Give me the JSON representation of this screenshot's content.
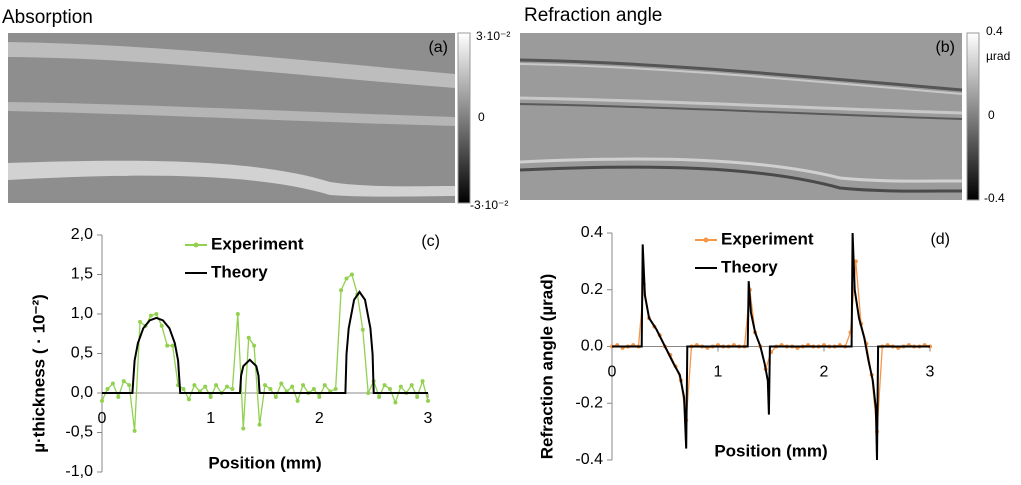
{
  "images": [
    {
      "title": "Absorption",
      "panel_label": "(a)",
      "colorbar_labels": [
        "3·10⁻²",
        "0",
        "-3·10⁻²"
      ]
    },
    {
      "title": "Refraction angle",
      "panel_label": "(b)",
      "colorbar_labels": [
        "0.4",
        "µrad",
        "0",
        "-0.4"
      ]
    }
  ],
  "chart_data": [
    {
      "type": "line",
      "panel_label": "(c)",
      "x_label": "Position (mm)",
      "y_label": "µ·thickness ( · 10⁻²)",
      "xlim": [
        0,
        3
      ],
      "xticks": [
        0,
        1,
        2,
        3
      ],
      "ylim": [
        -1,
        2
      ],
      "yticks": [
        {
          "value": 2,
          "label": "2,0"
        },
        {
          "value": 1.5,
          "label": "1,5"
        },
        {
          "value": 1,
          "label": "1,0"
        },
        {
          "value": 0.5,
          "label": "0,5"
        },
        {
          "value": 0,
          "label": "0,0"
        },
        {
          "value": -0.5,
          "label": "-0,5"
        },
        {
          "value": -1,
          "label": "-1,0"
        }
      ],
      "series": [
        {
          "name": "Experiment",
          "color": "#92d050",
          "marker": true,
          "x": [
            0,
            0.05,
            0.1,
            0.15,
            0.2,
            0.25,
            0.3,
            0.35,
            0.4,
            0.45,
            0.5,
            0.55,
            0.6,
            0.65,
            0.7,
            0.75,
            0.8,
            0.85,
            0.9,
            0.95,
            1,
            1.05,
            1.1,
            1.15,
            1.2,
            1.25,
            1.3,
            1.35,
            1.4,
            1.45,
            1.5,
            1.55,
            1.6,
            1.65,
            1.7,
            1.75,
            1.8,
            1.85,
            1.9,
            1.95,
            2,
            2.05,
            2.1,
            2.15,
            2.2,
            2.25,
            2.3,
            2.35,
            2.4,
            2.45,
            2.5,
            2.55,
            2.6,
            2.65,
            2.7,
            2.75,
            2.8,
            2.85,
            2.9,
            2.95,
            3
          ],
          "values": [
            -0.1,
            0.05,
            0.12,
            -0.05,
            0.15,
            0.1,
            -0.48,
            0.9,
            0.85,
            0.98,
            1.0,
            0.85,
            0.6,
            0.6,
            0.1,
            0.05,
            -0.08,
            0.1,
            0.02,
            0.08,
            -0.05,
            0.1,
            0,
            0.08,
            0.05,
            1.0,
            -0.45,
            0.7,
            0.6,
            -0.4,
            0.1,
            0.05,
            -0.05,
            0.12,
            0.02,
            0.08,
            -0.1,
            0.1,
            0,
            0.05,
            -0.05,
            0.1,
            0.02,
            0.05,
            1.3,
            1.45,
            1.5,
            1.25,
            0.8,
            0,
            0.15,
            -0.05,
            0.1,
            0.05,
            -0.12,
            0.08,
            0,
            0.1,
            -0.05,
            0.15,
            -0.1
          ]
        },
        {
          "name": "Theory",
          "color": "#000000",
          "marker": false,
          "x": [
            0,
            0.28,
            0.3,
            0.33,
            0.38,
            0.44,
            0.5,
            0.56,
            0.62,
            0.67,
            0.7,
            0.72,
            1.27,
            1.28,
            1.3,
            1.36,
            1.42,
            1.44,
            1.45,
            2.24,
            2.25,
            2.27,
            2.32,
            2.37,
            2.42,
            2.47,
            2.49,
            2.5,
            3
          ],
          "values": [
            0,
            0,
            0.41,
            0.63,
            0.82,
            0.92,
            0.95,
            0.92,
            0.82,
            0.63,
            0.41,
            0,
            0,
            0.22,
            0.34,
            0.42,
            0.34,
            0.22,
            0,
            0,
            0.49,
            0.82,
            1.18,
            1.28,
            1.18,
            0.82,
            0.49,
            0,
            0
          ]
        }
      ]
    },
    {
      "type": "line",
      "panel_label": "(d)",
      "x_label": "Position (mm)",
      "y_label": "Refraction angle (µrad)",
      "xlim": [
        0,
        3
      ],
      "xticks": [
        0,
        1,
        2,
        3
      ],
      "ylim": [
        -0.4,
        0.4
      ],
      "yticks": [
        0.4,
        0.2,
        {
          "value": 0,
          "label": "0.0"
        },
        -0.2,
        -0.4
      ],
      "series": [
        {
          "name": "Experiment",
          "color": "#f79646",
          "marker": true,
          "x": [
            0,
            0.05,
            0.1,
            0.15,
            0.2,
            0.25,
            0.3,
            0.35,
            0.4,
            0.45,
            0.5,
            0.55,
            0.6,
            0.65,
            0.7,
            0.75,
            0.8,
            0.85,
            0.9,
            0.95,
            1,
            1.05,
            1.1,
            1.15,
            1.2,
            1.25,
            1.3,
            1.35,
            1.4,
            1.45,
            1.5,
            1.55,
            1.6,
            1.65,
            1.7,
            1.75,
            1.8,
            1.85,
            1.9,
            1.95,
            2,
            2.05,
            2.1,
            2.15,
            2.2,
            2.25,
            2.3,
            2.35,
            2.4,
            2.45,
            2.5,
            2.55,
            2.6,
            2.65,
            2.7,
            2.75,
            2.8,
            2.85,
            2.9,
            2.95,
            3
          ],
          "values": [
            0,
            0.005,
            -0.005,
            0,
            0.005,
            0,
            0.22,
            0.1,
            0.07,
            0.04,
            0,
            -0.03,
            -0.07,
            -0.12,
            -0.26,
            0,
            0.005,
            0,
            -0.005,
            0,
            0.005,
            0,
            0,
            0.005,
            0,
            0,
            0.2,
            0.05,
            0,
            -0.08,
            -0.02,
            0,
            0.005,
            0,
            0,
            -0.005,
            0,
            0.005,
            0,
            0,
            0.005,
            0,
            0,
            0.005,
            0,
            0.05,
            0.3,
            0.08,
            0.01,
            -0.1,
            -0.3,
            0,
            0.005,
            0,
            -0.005,
            0,
            0.005,
            0,
            0,
            0.005,
            0
          ]
        },
        {
          "name": "Theory",
          "color": "#000000",
          "marker": false,
          "x": [
            0,
            0.28,
            0.29,
            0.31,
            0.35,
            0.42,
            0.5,
            0.58,
            0.64,
            0.68,
            0.7,
            0.71,
            1.28,
            1.29,
            1.31,
            1.35,
            1.4,
            1.44,
            1.47,
            1.48,
            1.49,
            2.26,
            2.27,
            2.29,
            2.33,
            2.38,
            2.42,
            2.46,
            2.49,
            2.5,
            2.51,
            3
          ],
          "values": [
            0,
            0,
            0.36,
            0.18,
            0.1,
            0.06,
            0,
            -0.06,
            -0.1,
            -0.18,
            -0.36,
            0,
            0,
            0.23,
            0.12,
            0.05,
            0,
            -0.06,
            -0.12,
            -0.24,
            0,
            0,
            0.4,
            0.2,
            0.1,
            0.03,
            -0.05,
            -0.12,
            -0.22,
            -0.4,
            0,
            0
          ]
        }
      ]
    }
  ]
}
